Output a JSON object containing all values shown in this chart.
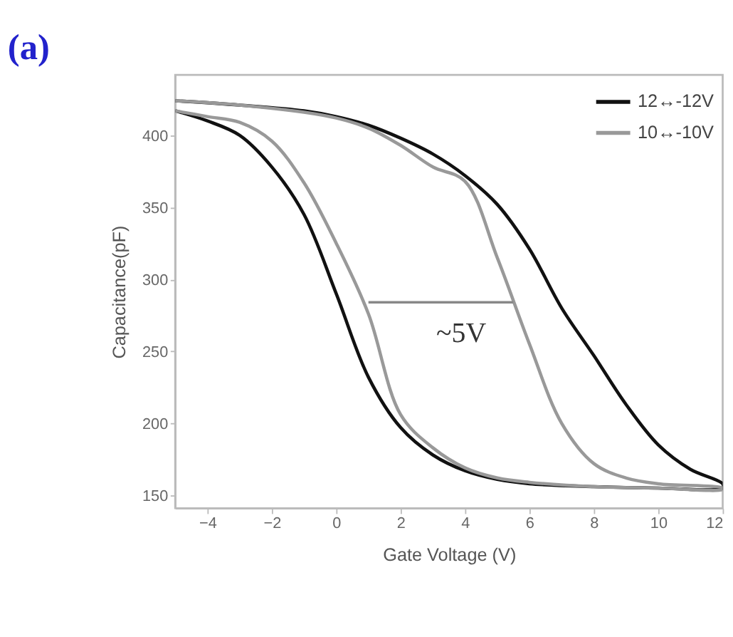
{
  "chart_data": {
    "type": "line",
    "title": "(a)",
    "xlabel": "Gate Voltage (V)",
    "ylabel": "Capacitance(pF)",
    "xlim": [
      -5,
      12
    ],
    "xticks": [
      -4,
      -2,
      0,
      2,
      4,
      6,
      8,
      10,
      12
    ],
    "ylim": [
      141,
      442
    ],
    "yticks": [
      150,
      200,
      250,
      300,
      350,
      400
    ],
    "grid": false,
    "legend": "top right",
    "marker": "none",
    "line_style": "solid",
    "annotations": [
      "~5V"
    ],
    "series": [
      {
        "name": "12↔-12V",
        "color": "#111111",
        "x": [
          -5,
          -4,
          -3,
          -2,
          -1,
          0,
          1,
          2,
          3,
          4,
          5,
          6,
          8,
          10,
          12,
          12,
          11,
          10,
          9,
          8,
          7,
          6,
          5,
          4,
          3,
          2,
          1,
          0,
          -1,
          -3,
          -5
        ],
        "values": [
          417,
          410,
          400,
          378,
          345,
          290,
          232,
          197,
          178,
          167,
          161,
          158,
          156,
          155,
          155,
          158,
          168,
          185,
          213,
          247,
          280,
          321,
          352,
          372,
          387,
          398,
          407,
          413,
          417,
          421,
          424
        ]
      },
      {
        "name": "10↔-10V",
        "color": "#999999",
        "x": [
          -5,
          -4,
          -3,
          -2,
          -1,
          0,
          1,
          2,
          3,
          4,
          5,
          6,
          8,
          10,
          12,
          12,
          10,
          9,
          8,
          7,
          6,
          5,
          4,
          3,
          2,
          1,
          0,
          -1,
          -3,
          -5
        ],
        "values": [
          417,
          413,
          409,
          396,
          367,
          325,
          276,
          206,
          183,
          169,
          162,
          159,
          156,
          155,
          154,
          155,
          158,
          162,
          172,
          200,
          255,
          315,
          368,
          378,
          393,
          405,
          412,
          416,
          421,
          424
        ]
      },
      {
        "color": "#888888",
        "x": [
          1,
          5.5
        ],
        "values": [
          284,
          284
        ]
      }
    ]
  }
}
